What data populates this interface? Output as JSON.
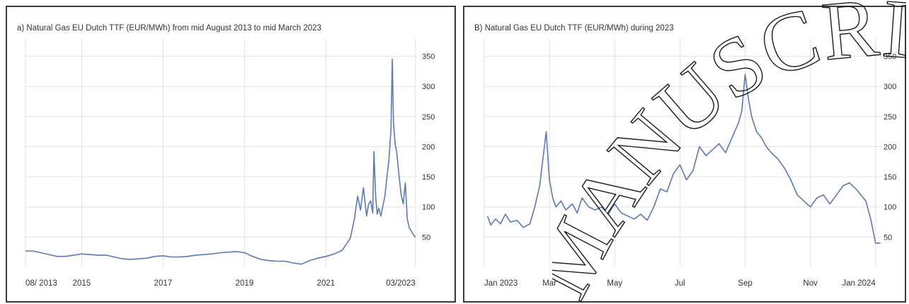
{
  "colors": {
    "line": "#5a7ab8",
    "grid": "#e2e2e2",
    "text": "#333333",
    "border": "#3a3a3a"
  },
  "chart_data": [
    {
      "type": "line",
      "title": "a) Natural Gas EU Dutch TTF (EUR/MWh) from mid August 2013 to mid March 2023",
      "xlabel": "",
      "ylabel": "",
      "xlim": [
        2013.62,
        2023.22
      ],
      "ylim": [
        0,
        380
      ],
      "grid": true,
      "yaxis_side": "right",
      "y_ticks": [
        50,
        100,
        150,
        200,
        250,
        300,
        350
      ],
      "x_ticks": [
        {
          "value": 2013.62,
          "label": "08/ 2013"
        },
        {
          "value": 2015.0,
          "label": "2015"
        },
        {
          "value": 2017.0,
          "label": "2017"
        },
        {
          "value": 2019.0,
          "label": "2019"
        },
        {
          "value": 2021.0,
          "label": "2021"
        },
        {
          "value": 2023.2,
          "label": "03/2023"
        }
      ],
      "series": [
        {
          "x": [
            2013.62,
            2013.8,
            2014.0,
            2014.2,
            2014.4,
            2014.6,
            2014.8,
            2015.0,
            2015.2,
            2015.4,
            2015.6,
            2015.8,
            2016.0,
            2016.2,
            2016.4,
            2016.6,
            2016.8,
            2017.0,
            2017.2,
            2017.4,
            2017.6,
            2017.8,
            2018.0,
            2018.2,
            2018.4,
            2018.6,
            2018.8,
            2019.0,
            2019.2,
            2019.4,
            2019.6,
            2019.8,
            2020.0,
            2020.2,
            2020.4,
            2020.6,
            2020.8,
            2021.0,
            2021.2,
            2021.4,
            2021.6,
            2021.7,
            2021.78,
            2021.85,
            2021.92,
            2022.0,
            2022.05,
            2022.1,
            2022.15,
            2022.18,
            2022.22,
            2022.26,
            2022.3,
            2022.35,
            2022.4,
            2022.45,
            2022.5,
            2022.55,
            2022.6,
            2022.63,
            2022.66,
            2022.7,
            2022.74,
            2022.8,
            2022.85,
            2022.9,
            2022.95,
            2023.0,
            2023.05,
            2023.1,
            2023.15,
            2023.2
          ],
          "y": [
            27,
            27,
            24,
            21,
            18,
            18,
            20,
            22,
            21,
            20,
            20,
            17,
            14,
            13,
            14,
            15,
            18,
            19,
            17,
            17,
            18,
            20,
            21,
            22,
            24,
            25,
            26,
            24,
            18,
            13,
            11,
            10,
            10,
            7,
            5,
            11,
            15,
            18,
            22,
            28,
            48,
            80,
            118,
            95,
            132,
            85,
            105,
            110,
            90,
            192,
            120,
            88,
            98,
            85,
            102,
            118,
            150,
            180,
            230,
            345,
            240,
            205,
            190,
            150,
            120,
            105,
            140,
            80,
            65,
            60,
            54,
            50
          ]
        }
      ]
    },
    {
      "type": "line",
      "title": "B) Natural Gas EU Dutch TTF (EUR/MWh) during 2023",
      "xlabel": "",
      "ylabel": "",
      "xlim": [
        0,
        12.2
      ],
      "ylim": [
        0,
        380
      ],
      "grid": true,
      "yaxis_side": "right",
      "y_ticks": [
        50,
        100,
        150,
        200,
        250,
        300,
        350
      ],
      "x_ticks": [
        {
          "value": 0,
          "label": "Jan 2023"
        },
        {
          "value": 2,
          "label": "Mar"
        },
        {
          "value": 4,
          "label": "May"
        },
        {
          "value": 6,
          "label": "Jul"
        },
        {
          "value": 8,
          "label": "Sep"
        },
        {
          "value": 10,
          "label": "Nov"
        },
        {
          "value": 12,
          "label": "Jan 2024"
        }
      ],
      "series": [
        {
          "x": [
            0.1,
            0.2,
            0.35,
            0.5,
            0.65,
            0.8,
            1.0,
            1.2,
            1.4,
            1.55,
            1.7,
            1.8,
            1.9,
            2.0,
            2.1,
            2.2,
            2.35,
            2.5,
            2.7,
            2.85,
            3.0,
            3.2,
            3.4,
            3.6,
            3.8,
            4.0,
            4.2,
            4.4,
            4.6,
            4.8,
            5.0,
            5.2,
            5.4,
            5.6,
            5.8,
            6.0,
            6.2,
            6.4,
            6.6,
            6.8,
            7.0,
            7.2,
            7.4,
            7.6,
            7.8,
            7.9,
            8.0,
            8.1,
            8.2,
            8.35,
            8.5,
            8.65,
            8.8,
            9.0,
            9.2,
            9.4,
            9.6,
            9.8,
            10.0,
            10.2,
            10.4,
            10.6,
            10.8,
            11.0,
            11.2,
            11.4,
            11.55,
            11.7,
            11.85,
            12.0,
            12.15
          ],
          "y": [
            85,
            70,
            80,
            72,
            88,
            75,
            78,
            66,
            72,
            100,
            135,
            180,
            225,
            145,
            115,
            100,
            110,
            95,
            105,
            90,
            115,
            100,
            95,
            100,
            88,
            105,
            90,
            85,
            80,
            88,
            78,
            100,
            130,
            125,
            155,
            170,
            145,
            160,
            200,
            185,
            195,
            205,
            190,
            215,
            240,
            260,
            320,
            280,
            250,
            225,
            215,
            200,
            190,
            180,
            165,
            145,
            120,
            110,
            100,
            115,
            120,
            105,
            120,
            135,
            140,
            130,
            120,
            110,
            80,
            40,
            40
          ]
        }
      ]
    }
  ],
  "watermark": {
    "text": "MANUSCRIPT"
  }
}
